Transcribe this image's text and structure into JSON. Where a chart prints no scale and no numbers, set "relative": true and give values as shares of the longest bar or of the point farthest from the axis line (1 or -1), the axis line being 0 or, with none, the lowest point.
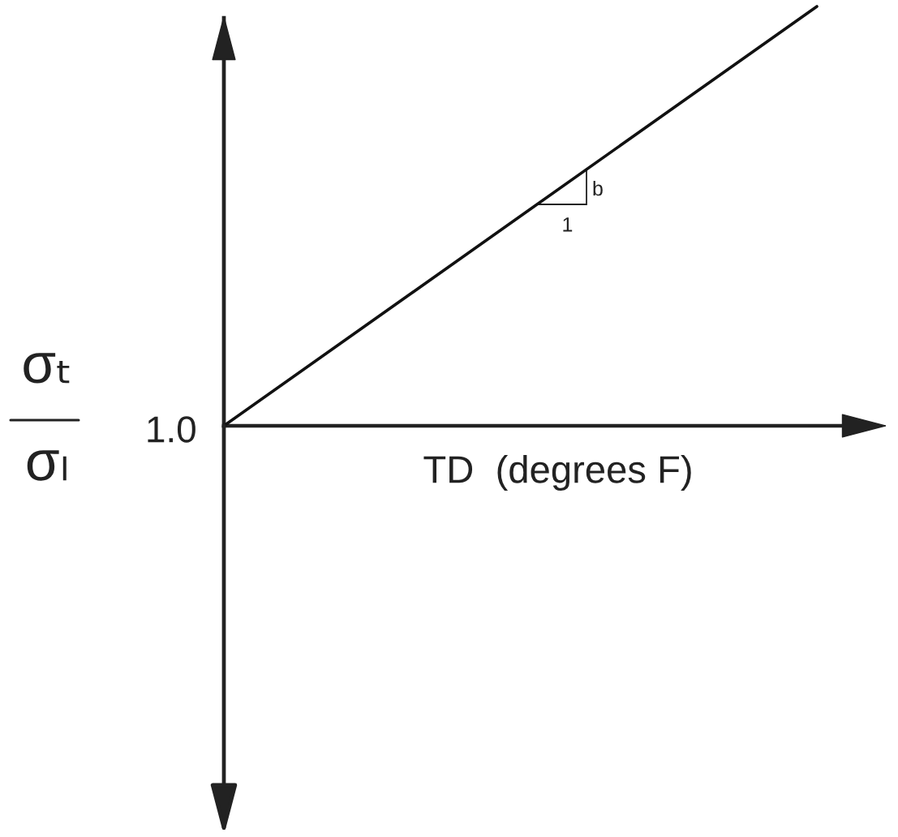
{
  "chart_data": {
    "type": "line",
    "relative": true,
    "categories": [
      null,
      null
    ],
    "series": [
      {
        "color": "#111111",
        "values": [
          0,
          1
        ]
      }
    ],
    "line_style": "solid",
    "xlabel": "TD  (degrees F)",
    "ylabel": "σₜ\nσₗ",
    "annotations": [
      "1.0",
      "b",
      "1"
    ]
  }
}
